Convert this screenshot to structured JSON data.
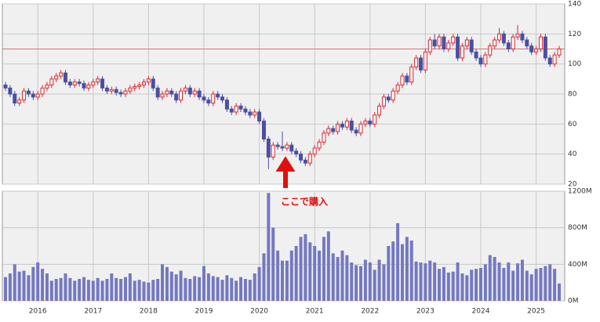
{
  "chart_data": {
    "type": "candlestick",
    "categories": [
      null,
      null,
      null,
      null,
      null,
      null,
      null,
      "2016",
      null,
      null,
      null,
      null,
      null,
      null,
      null,
      null,
      null,
      null,
      null,
      "2017",
      null,
      null,
      null,
      null,
      null,
      null,
      null,
      null,
      null,
      null,
      null,
      "2018",
      null,
      null,
      null,
      null,
      null,
      null,
      null,
      null,
      null,
      null,
      null,
      "2019",
      null,
      null,
      null,
      null,
      null,
      null,
      null,
      null,
      null,
      null,
      null,
      "2020",
      null,
      null,
      null,
      null,
      null,
      null,
      null,
      null,
      null,
      null,
      null,
      "2021",
      null,
      null,
      null,
      null,
      null,
      null,
      null,
      null,
      null,
      null,
      null,
      "2022",
      null,
      null,
      null,
      null,
      null,
      null,
      null,
      null,
      null,
      null,
      null,
      "2023",
      null,
      null,
      null,
      null,
      null,
      null,
      null,
      null,
      null,
      null,
      null,
      "2024",
      null,
      null,
      null,
      null,
      null,
      null,
      null,
      null,
      null,
      null,
      null,
      "2025",
      null,
      null,
      null,
      null,
      null
    ],
    "open": [
      86,
      84,
      80,
      74,
      76,
      82,
      80,
      78,
      80,
      84,
      86,
      90,
      92,
      94,
      88,
      86,
      88,
      87,
      84,
      86,
      88,
      90,
      84,
      82,
      83,
      81,
      80,
      82,
      84,
      85,
      86,
      88,
      90,
      84,
      78,
      80,
      82,
      80,
      76,
      82,
      84,
      80,
      82,
      78,
      76,
      74,
      80,
      78,
      76,
      70,
      68,
      72,
      70,
      68,
      66,
      68,
      62,
      50,
      38,
      46,
      45,
      44,
      46,
      42,
      40,
      36,
      34,
      40,
      44,
      48,
      54,
      57,
      55,
      60,
      58,
      62,
      56,
      54,
      60,
      62,
      60,
      66,
      72,
      78,
      76,
      82,
      86,
      92,
      88,
      98,
      104,
      96,
      108,
      116,
      112,
      118,
      110,
      114,
      118,
      104,
      112,
      116,
      108,
      104,
      100,
      106,
      112,
      116,
      120,
      114,
      110,
      118,
      120,
      116,
      112,
      108,
      110,
      118,
      104,
      100,
      106
    ],
    "high": [
      88,
      86,
      82,
      78,
      84,
      84,
      82,
      82,
      86,
      88,
      92,
      94,
      96,
      96,
      90,
      90,
      90,
      89,
      88,
      90,
      92,
      92,
      86,
      85,
      85,
      83,
      84,
      86,
      87,
      88,
      90,
      92,
      92,
      86,
      82,
      84,
      84,
      82,
      84,
      86,
      86,
      84,
      84,
      80,
      78,
      82,
      82,
      80,
      78,
      72,
      74,
      74,
      72,
      70,
      70,
      70,
      64,
      52,
      48,
      48,
      55,
      48,
      48,
      44,
      42,
      38,
      42,
      46,
      50,
      56,
      59,
      59,
      62,
      62,
      64,
      64,
      58,
      62,
      64,
      64,
      68,
      74,
      80,
      80,
      84,
      88,
      94,
      94,
      100,
      106,
      106,
      110,
      118,
      120,
      120,
      120,
      116,
      120,
      120,
      114,
      118,
      118,
      110,
      106,
      108,
      114,
      118,
      124,
      122,
      116,
      120,
      126,
      122,
      118,
      114,
      112,
      120,
      120,
      106,
      108,
      112
    ],
    "low": [
      82,
      78,
      72,
      72,
      74,
      78,
      76,
      76,
      78,
      82,
      84,
      88,
      90,
      86,
      84,
      84,
      85,
      82,
      82,
      84,
      86,
      82,
      80,
      80,
      79,
      78,
      78,
      80,
      82,
      83,
      84,
      86,
      82,
      76,
      76,
      78,
      78,
      74,
      74,
      80,
      78,
      78,
      76,
      74,
      72,
      72,
      76,
      74,
      68,
      66,
      66,
      68,
      66,
      64,
      64,
      60,
      48,
      30,
      36,
      43,
      42,
      42,
      40,
      38,
      34,
      32,
      32,
      38,
      42,
      46,
      52,
      53,
      53,
      56,
      56,
      54,
      52,
      52,
      58,
      58,
      58,
      64,
      70,
      74,
      74,
      80,
      84,
      86,
      86,
      96,
      94,
      94,
      106,
      110,
      110,
      108,
      108,
      112,
      102,
      102,
      110,
      106,
      102,
      98,
      98,
      104,
      110,
      114,
      112,
      108,
      108,
      116,
      114,
      110,
      106,
      106,
      108,
      102,
      98,
      98,
      104
    ],
    "close": [
      84,
      80,
      74,
      76,
      82,
      80,
      78,
      80,
      84,
      86,
      90,
      92,
      94,
      88,
      86,
      88,
      87,
      84,
      86,
      88,
      90,
      84,
      82,
      83,
      81,
      80,
      82,
      84,
      85,
      86,
      88,
      90,
      84,
      78,
      80,
      82,
      80,
      76,
      82,
      84,
      80,
      82,
      78,
      76,
      74,
      80,
      78,
      76,
      70,
      68,
      72,
      70,
      68,
      66,
      68,
      62,
      50,
      38,
      46,
      45,
      44,
      46,
      42,
      40,
      36,
      34,
      40,
      44,
      48,
      54,
      57,
      55,
      60,
      58,
      62,
      56,
      54,
      60,
      62,
      60,
      66,
      72,
      78,
      76,
      82,
      86,
      92,
      88,
      98,
      104,
      96,
      108,
      116,
      112,
      118,
      110,
      114,
      118,
      104,
      112,
      116,
      108,
      104,
      100,
      106,
      112,
      116,
      120,
      114,
      110,
      118,
      120,
      116,
      112,
      108,
      110,
      118,
      104,
      100,
      106,
      110
    ],
    "up_color": "#d9262c",
    "down_color": "#4b4fa3",
    "ylim": [
      20,
      140
    ],
    "yticks": [
      20,
      40,
      60,
      80,
      100,
      120,
      140
    ],
    "hline": 110,
    "hline_color": "#e07070",
    "annotation": "ここで購入",
    "volume": {
      "type": "bar",
      "color": "#7478c0",
      "ylim": [
        0,
        1200
      ],
      "yticks": [
        {
          "value": 0,
          "label": "0M"
        },
        {
          "value": 400,
          "label": "400M"
        },
        {
          "value": 800,
          "label": "800M"
        },
        {
          "value": 1200,
          "label": "1200M"
        }
      ],
      "values": [
        260,
        300,
        400,
        320,
        330,
        280,
        370,
        420,
        350,
        300,
        220,
        240,
        250,
        300,
        250,
        220,
        240,
        260,
        230,
        220,
        250,
        220,
        240,
        300,
        250,
        240,
        260,
        300,
        220,
        230,
        210,
        200,
        230,
        240,
        400,
        370,
        320,
        290,
        330,
        250,
        240,
        270,
        260,
        380,
        300,
        270,
        260,
        230,
        280,
        250,
        220,
        260,
        240,
        230,
        300,
        370,
        520,
        1180,
        800,
        550,
        440,
        440,
        550,
        600,
        700,
        730,
        640,
        600,
        550,
        700,
        760,
        520,
        480,
        550,
        500,
        420,
        390,
        380,
        450,
        420,
        340,
        450,
        400,
        600,
        650,
        850,
        620,
        700,
        660,
        430,
        420,
        410,
        440,
        420,
        350,
        370,
        310,
        320,
        420,
        300,
        280,
        340,
        350,
        360,
        400,
        500,
        480,
        420,
        360,
        420,
        330,
        410,
        450,
        330,
        290,
        350,
        360,
        380,
        400,
        350,
        190
      ]
    }
  }
}
